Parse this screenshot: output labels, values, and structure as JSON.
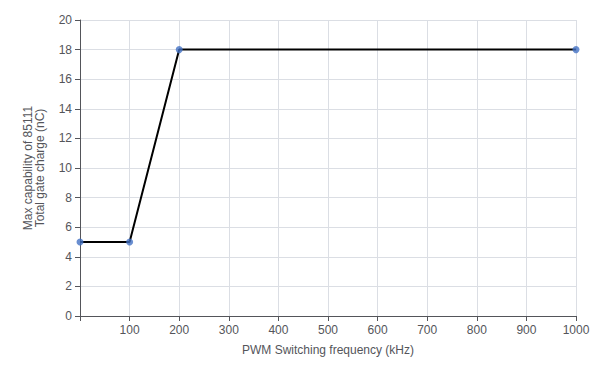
{
  "chart_data": {
    "type": "line",
    "xlabel": "PWM Switching frequency (kHz)",
    "ylabel": "Max capability of 85111\nTotal gate charge (nC)",
    "x": [
      0,
      100,
      200,
      1000
    ],
    "series": [
      {
        "type": "line",
        "color": "#000000",
        "values": [
          5,
          5,
          18,
          18
        ]
      },
      {
        "type": "scatter",
        "color": "#4472C4",
        "marker": "circle",
        "values": [
          5,
          5,
          18,
          18
        ]
      }
    ],
    "xlim": [
      0,
      1000
    ],
    "ylim": [
      0,
      20
    ],
    "xticks": [
      {
        "value": 0,
        "label": null
      },
      100,
      200,
      300,
      400,
      500,
      600,
      700,
      800,
      900,
      1000
    ],
    "yticks": [
      0,
      2,
      4,
      6,
      8,
      10,
      12,
      14,
      16,
      18,
      20
    ],
    "grid": true
  }
}
